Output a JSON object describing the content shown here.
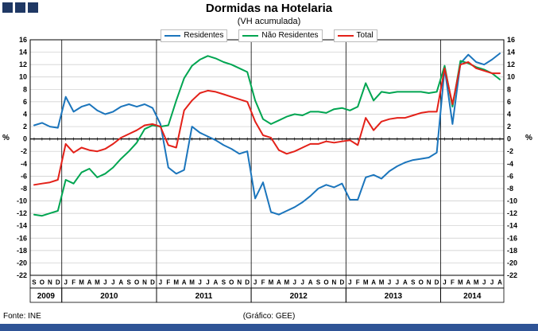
{
  "title": "Dormidas na Hotelaria",
  "subtitle": "(VH acumulada)",
  "legend": [
    {
      "label": "Residentes",
      "color": "#1B75BC"
    },
    {
      "label": "Não Residentes",
      "color": "#00A551"
    },
    {
      "label": "Total",
      "color": "#E32119"
    }
  ],
  "axis": {
    "left_unit": "%",
    "right_unit": "%"
  },
  "footer": {
    "source": "Fonte: INE",
    "credit": "(Gráfico: GEE)"
  },
  "chart_data": {
    "type": "line",
    "title": "Dormidas na Hotelaria",
    "subtitle": "(VH acumulada)",
    "ylabel": "%",
    "ylim": [
      -22,
      16
    ],
    "ytick_step": 2,
    "grid": true,
    "legend_position": "top",
    "x_labels": [
      "S",
      "O",
      "N",
      "D",
      "J",
      "F",
      "M",
      "A",
      "M",
      "J",
      "J",
      "A",
      "S",
      "O",
      "N",
      "D",
      "J",
      "F",
      "M",
      "A",
      "M",
      "J",
      "J",
      "A",
      "S",
      "O",
      "N",
      "D",
      "J",
      "F",
      "M",
      "A",
      "M",
      "J",
      "J",
      "A",
      "S",
      "O",
      "N",
      "D",
      "J",
      "F",
      "M",
      "A",
      "M",
      "J",
      "J",
      "A",
      "S",
      "O",
      "N",
      "D",
      "J",
      "F",
      "M",
      "A",
      "M",
      "J",
      "J",
      "A"
    ],
    "year_bands": [
      {
        "label": "2009",
        "count": 4
      },
      {
        "label": "2010",
        "count": 12
      },
      {
        "label": "2011",
        "count": 12
      },
      {
        "label": "2012",
        "count": 12
      },
      {
        "label": "2013",
        "count": 12
      },
      {
        "label": "2014",
        "count": 8
      }
    ],
    "series": [
      {
        "name": "Residentes",
        "color": "#1B75BC",
        "values": [
          2.2,
          2.6,
          2.0,
          1.8,
          6.8,
          4.4,
          5.2,
          5.6,
          4.6,
          4.0,
          4.4,
          5.2,
          5.6,
          5.2,
          5.6,
          5.0,
          2.4,
          -4.6,
          -5.6,
          -5.0,
          2.0,
          1.0,
          0.4,
          -0.2,
          -1.0,
          -1.6,
          -2.4,
          -2.0,
          -9.6,
          -7.0,
          -11.8,
          -12.2,
          -11.6,
          -11.0,
          -10.2,
          -9.2,
          -8.0,
          -7.4,
          -7.8,
          -7.2,
          -9.8,
          -9.8,
          -6.2,
          -5.8,
          -6.4,
          -5.2,
          -4.4,
          -3.8,
          -3.4,
          -3.2,
          -3.0,
          -2.2,
          11.4,
          2.4,
          12.2,
          13.6,
          12.4,
          12.0,
          12.8,
          13.8
        ]
      },
      {
        "name": "Não Residentes",
        "color": "#00A551",
        "values": [
          -12.2,
          -12.4,
          -12.0,
          -11.6,
          -6.6,
          -7.2,
          -5.4,
          -4.8,
          -6.2,
          -5.6,
          -4.6,
          -3.2,
          -2.0,
          -0.6,
          1.6,
          2.2,
          2.0,
          2.2,
          6.2,
          9.8,
          11.8,
          12.8,
          13.4,
          13.0,
          12.4,
          12.0,
          11.4,
          10.8,
          6.2,
          3.2,
          2.4,
          3.0,
          3.6,
          4.0,
          3.8,
          4.4,
          4.4,
          4.2,
          4.8,
          5.0,
          4.6,
          5.2,
          9.0,
          6.2,
          7.6,
          7.4,
          7.6,
          7.6,
          7.6,
          7.6,
          7.4,
          7.6,
          11.8,
          5.2,
          12.6,
          12.2,
          11.6,
          11.2,
          10.6,
          9.6
        ]
      },
      {
        "name": "Total",
        "color": "#E32119",
        "values": [
          -7.4,
          -7.2,
          -7.0,
          -6.6,
          -0.8,
          -2.2,
          -1.4,
          -1.8,
          -2.0,
          -1.6,
          -0.8,
          0.2,
          0.8,
          1.4,
          2.2,
          2.4,
          2.0,
          -1.0,
          -1.4,
          4.6,
          6.2,
          7.4,
          7.8,
          7.6,
          7.2,
          6.8,
          6.4,
          6.0,
          2.8,
          0.6,
          0.2,
          -1.8,
          -2.4,
          -2.0,
          -1.4,
          -0.8,
          -0.8,
          -0.4,
          -0.6,
          -0.4,
          -0.2,
          -1.0,
          3.4,
          1.4,
          2.8,
          3.2,
          3.4,
          3.4,
          3.8,
          4.2,
          4.4,
          4.4,
          11.4,
          5.6,
          12.0,
          12.4,
          11.4,
          11.0,
          10.6,
          10.6
        ]
      }
    ]
  }
}
